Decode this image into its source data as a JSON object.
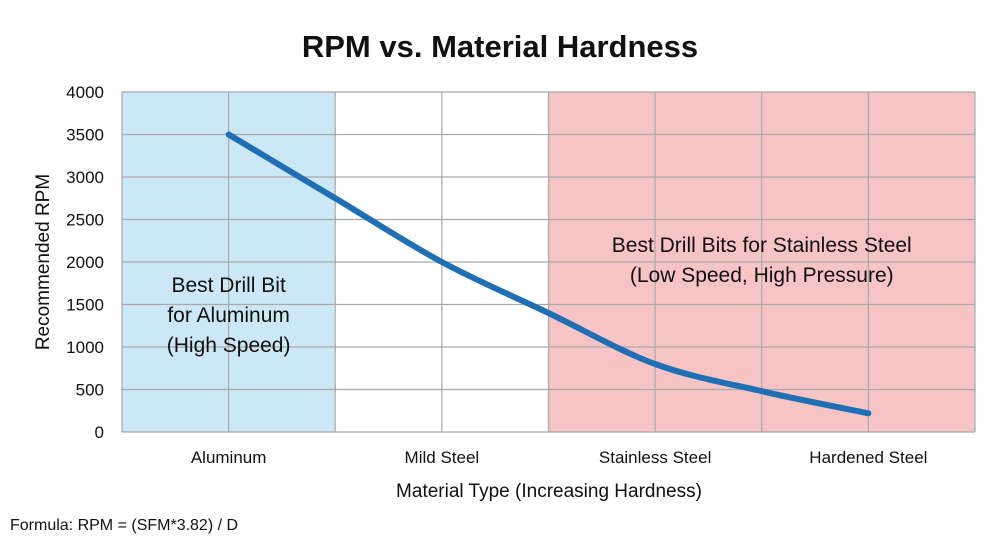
{
  "chart_data": {
    "type": "line",
    "title": "RPM vs. Material Hardness",
    "xlabel": "Material Type (Increasing Hardness)",
    "ylabel": "Recommended RPM",
    "categories": [
      "Aluminum",
      "Mild Steel",
      "Stainless Steel",
      "Hardened Steel"
    ],
    "xlim": [
      -0.5,
      3.5
    ],
    "ylim": [
      0,
      4000
    ],
    "yticks": [
      0,
      500,
      1000,
      1500,
      2000,
      2500,
      3000,
      3500,
      4000
    ],
    "grid": true,
    "series": [
      {
        "x": [
          0,
          0.5,
          1,
          1.5,
          2,
          2.5,
          3
        ],
        "y": [
          3500,
          2750,
          2000,
          1400,
          800,
          480,
          220
        ],
        "color": "#1f6fb5"
      }
    ],
    "regions": [
      {
        "from": -0.5,
        "to": 0.5,
        "color": "#cce8f6",
        "label": [
          "Best Drill Bit",
          "for Aluminum",
          "(High Speed)"
        ]
      },
      {
        "from": 1.5,
        "to": 3.5,
        "color": "#f7c4c6",
        "label": [
          "Best Drill Bits for Stainless Steel",
          "(Low Speed, High Pressure)"
        ]
      }
    ],
    "annotations": [
      "Formula: RPM = (SFM*3.82) / D"
    ]
  }
}
